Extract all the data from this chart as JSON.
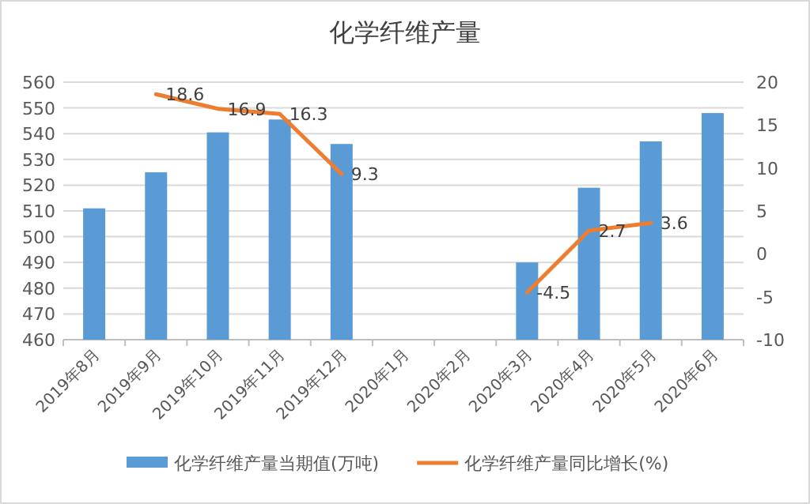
{
  "chart_data": {
    "type": "bar",
    "title": "化学纤维产量",
    "categories": [
      "2019年8月",
      "2019年9月",
      "2019年10月",
      "2019年11月",
      "2019年12月",
      "2020年1月",
      "2020年2月",
      "2020年3月",
      "2020年4月",
      "2020年5月",
      "2020年6月"
    ],
    "series": [
      {
        "name": "化学纤维产量当期值(万吨)",
        "color": "#5b9bd5",
        "values": [
          511,
          525,
          540.5,
          545.5,
          536,
          null,
          null,
          490,
          519,
          537,
          548
        ]
      },
      {
        "name": "化学纤维产量同比增长(%)",
        "color": "#ed7d31",
        "type": "line",
        "axis": "y2",
        "values": [
          null,
          18.6,
          16.9,
          16.3,
          9.3,
          null,
          null,
          -4.5,
          2.7,
          3.6,
          null
        ],
        "value_labels": [
          null,
          "18.6",
          "16.9",
          "16.3",
          "9.3",
          null,
          null,
          "-4.5",
          "2.7",
          "3.6",
          null
        ]
      }
    ],
    "ylim": [
      460,
      560
    ],
    "yticks": [
      460,
      470,
      480,
      490,
      500,
      510,
      520,
      530,
      540,
      550,
      560
    ],
    "y2lim": [
      -10,
      20
    ],
    "y2ticks": [
      -10,
      -5,
      0,
      5,
      10,
      15,
      20
    ],
    "grid": "y",
    "legend": "bottom"
  }
}
